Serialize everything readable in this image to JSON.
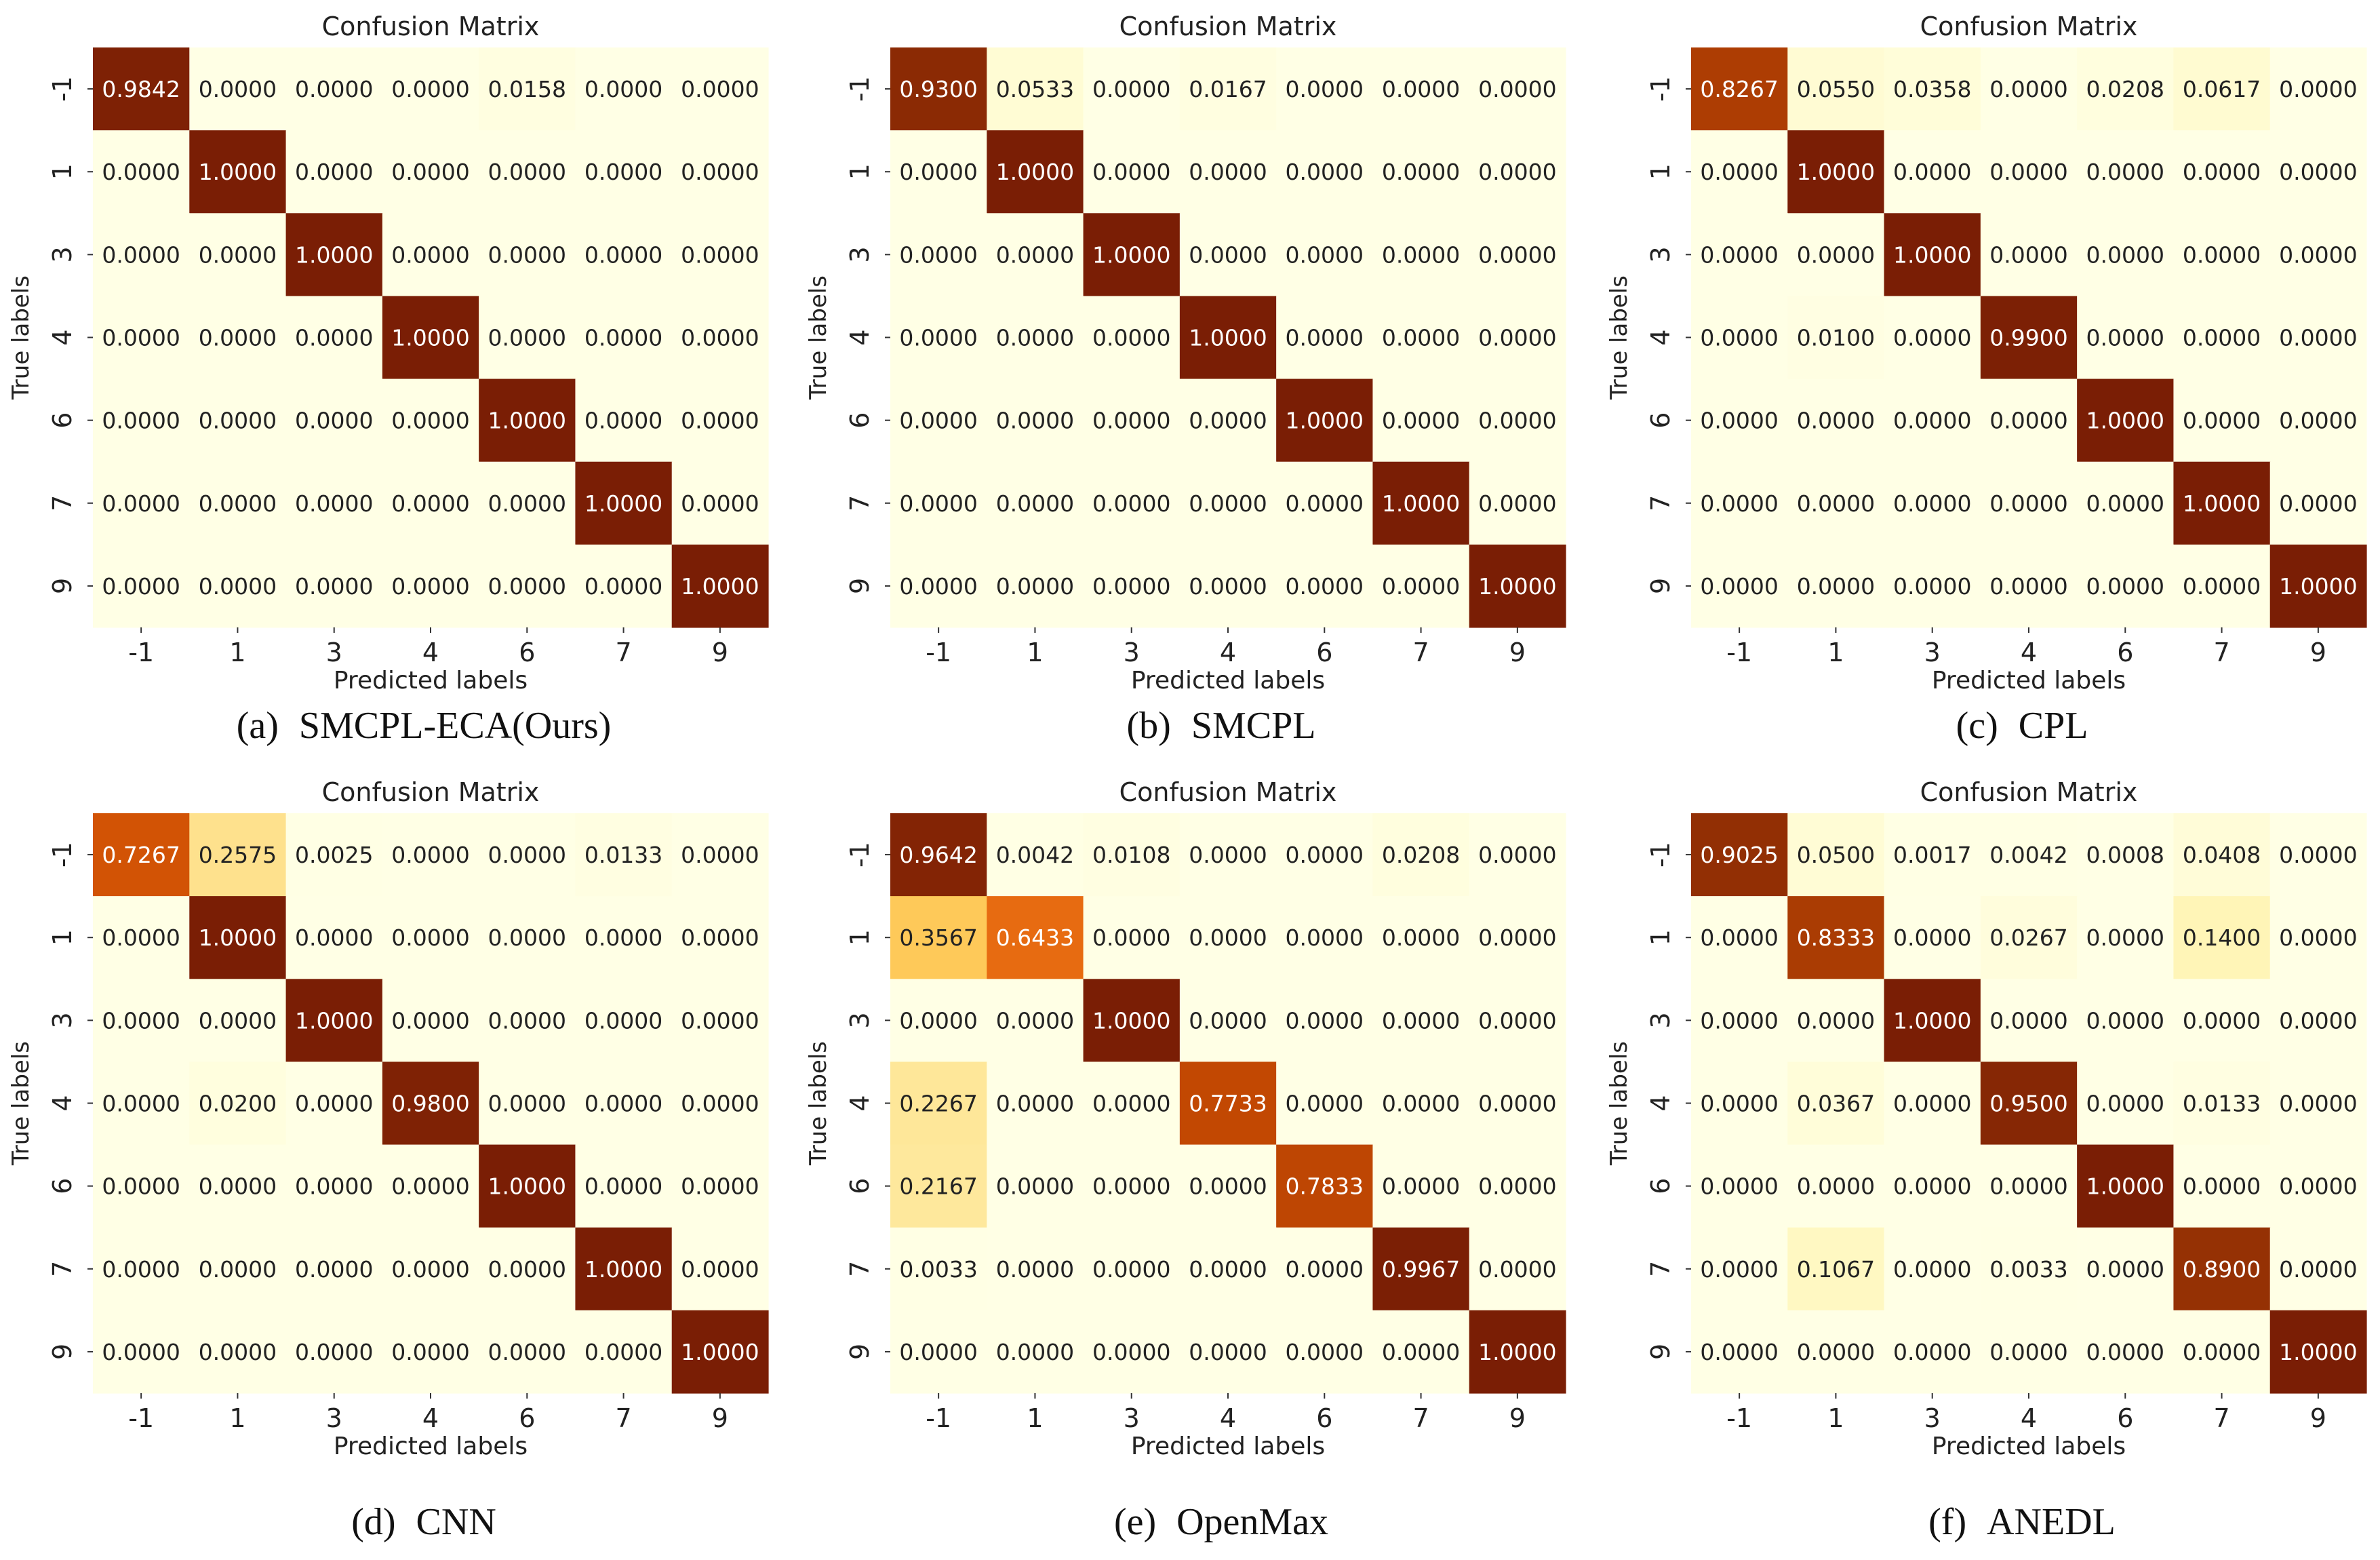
{
  "chart_data": [
    {
      "id": "a",
      "type": "heatmap",
      "title": "Confusion Matrix",
      "xlabel": "Predicted labels",
      "ylabel": "True labels",
      "caption_letter": "(a)",
      "caption_name": "SMCPL-ECA(Ours)",
      "x_ticks": [
        "-1",
        "1",
        "3",
        "4",
        "6",
        "7",
        "9"
      ],
      "y_ticks": [
        "-1",
        "1",
        "3",
        "4",
        "6",
        "7",
        "9"
      ],
      "cell_labels": [
        [
          "0.9842",
          "0.0000",
          "0.0000",
          "0.0000",
          "0.0158",
          "0.0000",
          "0.0000"
        ],
        [
          "0.0000",
          "1.0000",
          "0.0000",
          "0.0000",
          "0.0000",
          "0.0000",
          "0.0000"
        ],
        [
          "0.0000",
          "0.0000",
          "1.0000",
          "0.0000",
          "0.0000",
          "0.0000",
          "0.0000"
        ],
        [
          "0.0000",
          "0.0000",
          "0.0000",
          "1.0000",
          "0.0000",
          "0.0000",
          "0.0000"
        ],
        [
          "0.0000",
          "0.0000",
          "0.0000",
          "0.0000",
          "1.0000",
          "0.0000",
          "0.0000"
        ],
        [
          "0.0000",
          "0.0000",
          "0.0000",
          "0.0000",
          "0.0000",
          "1.0000",
          "0.0000"
        ],
        [
          "0.0000",
          "0.0000",
          "0.0000",
          "0.0000",
          "0.0000",
          "0.0000",
          "1.0000"
        ]
      ]
    },
    {
      "id": "b",
      "type": "heatmap",
      "title": "Confusion Matrix",
      "xlabel": "Predicted labels",
      "ylabel": "True labels",
      "caption_letter": "(b)",
      "caption_name": "SMCPL",
      "x_ticks": [
        "-1",
        "1",
        "3",
        "4",
        "6",
        "7",
        "9"
      ],
      "y_ticks": [
        "-1",
        "1",
        "3",
        "4",
        "6",
        "7",
        "9"
      ],
      "cell_labels": [
        [
          "0.9300",
          "0.0533",
          "0.0000",
          "0.0167",
          "0.0000",
          "0.0000",
          "0.0000"
        ],
        [
          "0.0000",
          "1.0000",
          "0.0000",
          "0.0000",
          "0.0000",
          "0.0000",
          "0.0000"
        ],
        [
          "0.0000",
          "0.0000",
          "1.0000",
          "0.0000",
          "0.0000",
          "0.0000",
          "0.0000"
        ],
        [
          "0.0000",
          "0.0000",
          "0.0000",
          "1.0000",
          "0.0000",
          "0.0000",
          "0.0000"
        ],
        [
          "0.0000",
          "0.0000",
          "0.0000",
          "0.0000",
          "1.0000",
          "0.0000",
          "0.0000"
        ],
        [
          "0.0000",
          "0.0000",
          "0.0000",
          "0.0000",
          "0.0000",
          "1.0000",
          "0.0000"
        ],
        [
          "0.0000",
          "0.0000",
          "0.0000",
          "0.0000",
          "0.0000",
          "0.0000",
          "1.0000"
        ]
      ]
    },
    {
      "id": "c",
      "type": "heatmap",
      "title": "Confusion Matrix",
      "xlabel": "Predicted labels",
      "ylabel": "True labels",
      "caption_letter": "(c)",
      "caption_name": "CPL",
      "x_ticks": [
        "-1",
        "1",
        "3",
        "4",
        "6",
        "7",
        "9"
      ],
      "y_ticks": [
        "-1",
        "1",
        "3",
        "4",
        "6",
        "7",
        "9"
      ],
      "cell_labels": [
        [
          "0.8267",
          "0.0550",
          "0.0358",
          "0.0000",
          "0.0208",
          "0.0617",
          "0.0000"
        ],
        [
          "0.0000",
          "1.0000",
          "0.0000",
          "0.0000",
          "0.0000",
          "0.0000",
          "0.0000"
        ],
        [
          "0.0000",
          "0.0000",
          "1.0000",
          "0.0000",
          "0.0000",
          "0.0000",
          "0.0000"
        ],
        [
          "0.0000",
          "0.0100",
          "0.0000",
          "0.9900",
          "0.0000",
          "0.0000",
          "0.0000"
        ],
        [
          "0.0000",
          "0.0000",
          "0.0000",
          "0.0000",
          "1.0000",
          "0.0000",
          "0.0000"
        ],
        [
          "0.0000",
          "0.0000",
          "0.0000",
          "0.0000",
          "0.0000",
          "1.0000",
          "0.0000"
        ],
        [
          "0.0000",
          "0.0000",
          "0.0000",
          "0.0000",
          "0.0000",
          "0.0000",
          "1.0000"
        ]
      ]
    },
    {
      "id": "d",
      "type": "heatmap",
      "title": "Confusion Matrix",
      "xlabel": "Predicted labels",
      "ylabel": "True labels",
      "caption_letter": "(d)",
      "caption_name": "CNN",
      "x_ticks": [
        "-1",
        "1",
        "3",
        "4",
        "6",
        "7",
        "9"
      ],
      "y_ticks": [
        "-1",
        "1",
        "3",
        "4",
        "6",
        "7",
        "9"
      ],
      "cell_labels": [
        [
          "0.7267",
          "0.2575",
          "0.0025",
          "0.0000",
          "0.0000",
          "0.0133",
          "0.0000"
        ],
        [
          "0.0000",
          "1.0000",
          "0.0000",
          "0.0000",
          "0.0000",
          "0.0000",
          "0.0000"
        ],
        [
          "0.0000",
          "0.0000",
          "1.0000",
          "0.0000",
          "0.0000",
          "0.0000",
          "0.0000"
        ],
        [
          "0.0000",
          "0.0200",
          "0.0000",
          "0.9800",
          "0.0000",
          "0.0000",
          "0.0000"
        ],
        [
          "0.0000",
          "0.0000",
          "0.0000",
          "0.0000",
          "1.0000",
          "0.0000",
          "0.0000"
        ],
        [
          "0.0000",
          "0.0000",
          "0.0000",
          "0.0000",
          "0.0000",
          "1.0000",
          "0.0000"
        ],
        [
          "0.0000",
          "0.0000",
          "0.0000",
          "0.0000",
          "0.0000",
          "0.0000",
          "1.0000"
        ]
      ]
    },
    {
      "id": "e",
      "type": "heatmap",
      "title": "Confusion Matrix",
      "xlabel": "Predicted labels",
      "ylabel": "True labels",
      "caption_letter": "(e)",
      "caption_name": "OpenMax",
      "x_ticks": [
        "-1",
        "1",
        "3",
        "4",
        "6",
        "7",
        "9"
      ],
      "y_ticks": [
        "-1",
        "1",
        "3",
        "4",
        "6",
        "7",
        "9"
      ],
      "cell_labels": [
        [
          "0.9642",
          "0.0042",
          "0.0108",
          "0.0000",
          "0.0000",
          "0.0208",
          "0.0000"
        ],
        [
          "0.3567",
          "0.6433",
          "0.0000",
          "0.0000",
          "0.0000",
          "0.0000",
          "0.0000"
        ],
        [
          "0.0000",
          "0.0000",
          "1.0000",
          "0.0000",
          "0.0000",
          "0.0000",
          "0.0000"
        ],
        [
          "0.2267",
          "0.0000",
          "0.0000",
          "0.7733",
          "0.0000",
          "0.0000",
          "0.0000"
        ],
        [
          "0.2167",
          "0.0000",
          "0.0000",
          "0.0000",
          "0.7833",
          "0.0000",
          "0.0000"
        ],
        [
          "0.0033",
          "0.0000",
          "0.0000",
          "0.0000",
          "0.0000",
          "0.9967",
          "0.0000"
        ],
        [
          "0.0000",
          "0.0000",
          "0.0000",
          "0.0000",
          "0.0000",
          "0.0000",
          "1.0000"
        ]
      ]
    },
    {
      "id": "f",
      "type": "heatmap",
      "title": "Confusion Matrix",
      "xlabel": "Predicted labels",
      "ylabel": "True labels",
      "caption_letter": "(f)",
      "caption_name": "ANEDL",
      "x_ticks": [
        "-1",
        "1",
        "3",
        "4",
        "6",
        "7",
        "9"
      ],
      "y_ticks": [
        "-1",
        "1",
        "3",
        "4",
        "6",
        "7",
        "9"
      ],
      "cell_labels": [
        [
          "0.9025",
          "0.0500",
          "0.0017",
          "0.0042",
          "0.0008",
          "0.0408",
          "0.0000"
        ],
        [
          "0.0000",
          "0.8333",
          "0.0000",
          "0.0267",
          "0.0000",
          "0.1400",
          "0.0000"
        ],
        [
          "0.0000",
          "0.0000",
          "1.0000",
          "0.0000",
          "0.0000",
          "0.0000",
          "0.0000"
        ],
        [
          "0.0000",
          "0.0367",
          "0.0000",
          "0.9500",
          "0.0000",
          "0.0133",
          "0.0000"
        ],
        [
          "0.0000",
          "0.0000",
          "0.0000",
          "0.0000",
          "1.0000",
          "0.0000",
          "0.0000"
        ],
        [
          "0.0000",
          "0.1067",
          "0.0000",
          "0.0033",
          "0.0000",
          "0.8900",
          "0.0000"
        ],
        [
          "0.0000",
          "0.0000",
          "0.0000",
          "0.0000",
          "0.0000",
          "0.0000",
          "1.0000"
        ]
      ]
    }
  ]
}
